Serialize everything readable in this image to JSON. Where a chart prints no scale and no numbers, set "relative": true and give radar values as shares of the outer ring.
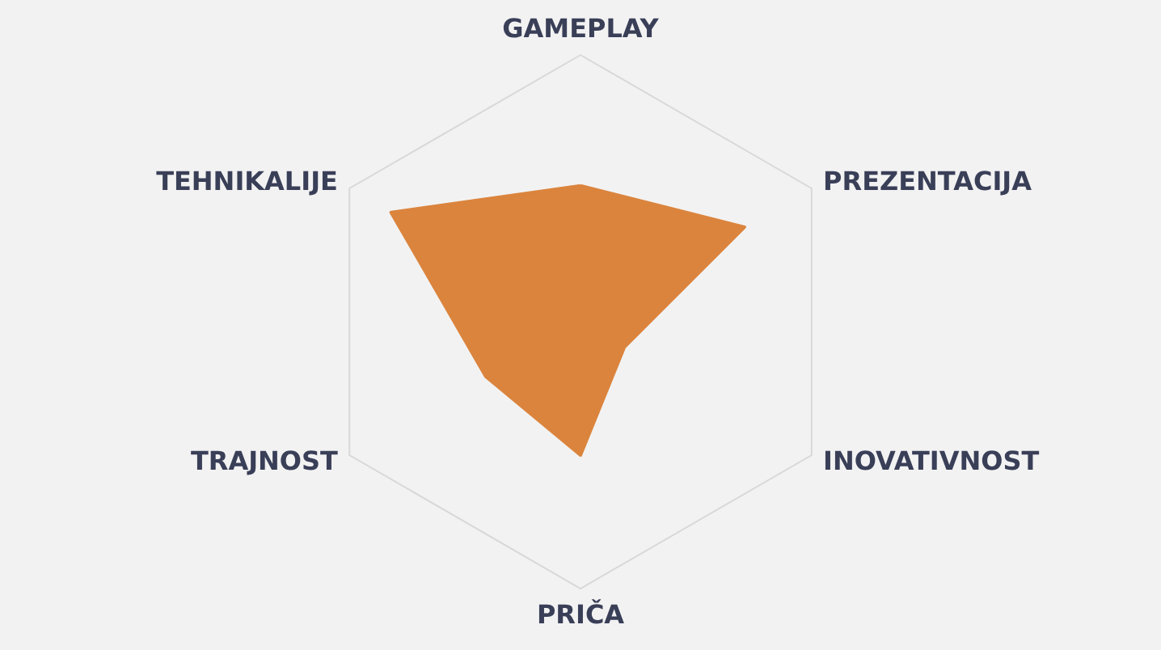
{
  "chart_data": {
    "type": "radar",
    "relative": true,
    "categories": [
      "GAMEPLAY",
      "PREZENTACIJA",
      "INOVATIVNOST",
      "PRIČA",
      "TRAJNOST",
      "TEHNIKALIJE"
    ],
    "series": [
      {
        "color": "#db843d",
        "values": [
          0.51,
          0.71,
          0.19,
          0.5,
          0.41,
          0.82
        ]
      }
    ]
  }
}
